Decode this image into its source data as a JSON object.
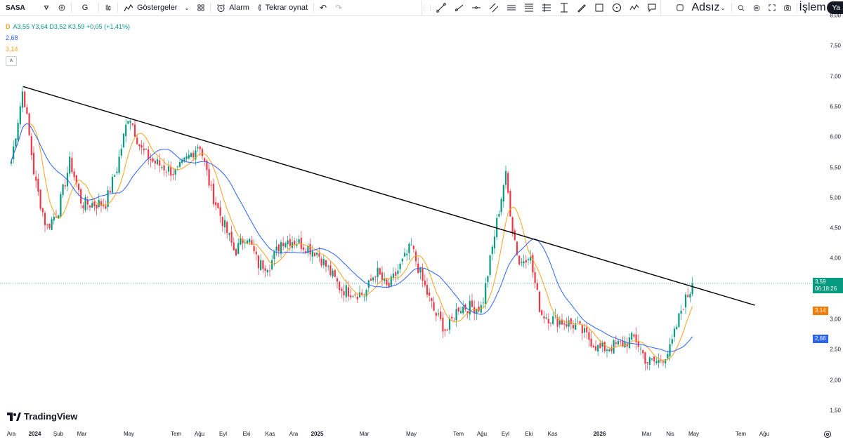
{
  "toolbar": {
    "symbol": "SASA",
    "interval": "G",
    "indicators_label": "Göstergeler",
    "alert_label": "Alarm",
    "replay_label": "Tekrar oynat",
    "layout_name": "Adsız",
    "trade_label": "İşlem",
    "publish_label": "Ya"
  },
  "legend": {
    "flag": "D",
    "ohlc": "A3,55  Y3,64  D3,52  K3,59  +0,05 (+1,41%)",
    "ma1_value": "2,68",
    "ma2_value": "3,14",
    "ma1_color": "#2962ff",
    "ma2_color": "#f7a21b",
    "collapse_icon": "chevron-up-icon"
  },
  "branding": {
    "logo_text": "TradingView"
  },
  "price_tags": {
    "last_price": "3,59",
    "countdown": "06:18:26",
    "ma2_tag": "3,14",
    "ma1_tag": "2,68",
    "last_color": "#089981",
    "ma2_color": "#f57c00",
    "ma1_color": "#2962ff"
  },
  "colors": {
    "up": "#089981",
    "down": "#f23645",
    "trendline": "#000000"
  },
  "chart_data": {
    "type": "candlestick",
    "symbol": "SASA",
    "interval": "1D",
    "y_ticks": [
      "8,00",
      "7,50",
      "7,00",
      "6,50",
      "6,00",
      "5,50",
      "5,00",
      "4,50",
      "4,00",
      "3,50",
      "3,00",
      "2,50",
      "2,00",
      "1,50"
    ],
    "y_tick_values": [
      8.0,
      7.5,
      7.0,
      6.5,
      6.0,
      5.5,
      5.0,
      4.5,
      4.0,
      3.5,
      3.0,
      2.5,
      2.0,
      1.5
    ],
    "ylim": [
      1.5,
      8.0
    ],
    "x_ticks": [
      {
        "label": "Ara",
        "month": "2023-12",
        "bold": false
      },
      {
        "label": "2024",
        "month": "2024-01",
        "bold": true
      },
      {
        "label": "Şub",
        "month": "2024-02",
        "bold": false
      },
      {
        "label": "Mar",
        "month": "2024-03",
        "bold": false
      },
      {
        "label": "May",
        "month": "2024-05",
        "bold": false
      },
      {
        "label": "Tem",
        "month": "2024-07",
        "bold": false
      },
      {
        "label": "Ağu",
        "month": "2024-08",
        "bold": false
      },
      {
        "label": "Eyl",
        "month": "2024-09",
        "bold": false
      },
      {
        "label": "Eki",
        "month": "2024-10",
        "bold": false
      },
      {
        "label": "Kas",
        "month": "2024-11",
        "bold": false
      },
      {
        "label": "Ara",
        "month": "2024-12",
        "bold": false
      },
      {
        "label": "2025",
        "month": "2025-01",
        "bold": true
      },
      {
        "label": "Mar",
        "month": "2025-03",
        "bold": false
      },
      {
        "label": "May",
        "month": "2025-05",
        "bold": false
      },
      {
        "label": "Tem",
        "month": "2025-07",
        "bold": false
      },
      {
        "label": "Ağu",
        "month": "2025-08",
        "bold": false
      },
      {
        "label": "Eyl",
        "month": "2025-09",
        "bold": false
      },
      {
        "label": "Eki",
        "month": "2025-10",
        "bold": false
      },
      {
        "label": "Kas",
        "month": "2025-11",
        "bold": false
      },
      {
        "label": "2026",
        "month": "2026-01",
        "bold": true
      },
      {
        "label": "Mar",
        "month": "2026-03",
        "bold": false
      },
      {
        "label": "Nis",
        "month": "2026-04",
        "bold": false
      },
      {
        "label": "May",
        "month": "2026-05",
        "bold": false
      },
      {
        "label": "Tem",
        "month": "2026-07",
        "bold": false
      },
      {
        "label": "Ağu",
        "month": "2026-08",
        "bold": false
      }
    ],
    "close_path": [
      {
        "month": "2023-12",
        "close": 5.6
      },
      {
        "month": "2023-12.5",
        "close": 6.8
      },
      {
        "month": "2024-01",
        "close": 5.3
      },
      {
        "month": "2024-01.5",
        "close": 4.5
      },
      {
        "month": "2024-02",
        "close": 4.8
      },
      {
        "month": "2024-02.5",
        "close": 5.6
      },
      {
        "month": "2024-03",
        "close": 4.9
      },
      {
        "month": "2024-04",
        "close": 4.9
      },
      {
        "month": "2024-04.5",
        "close": 5.5
      },
      {
        "month": "2024-05",
        "close": 6.4
      },
      {
        "month": "2024-05.5",
        "close": 5.8
      },
      {
        "month": "2024-06",
        "close": 5.6
      },
      {
        "month": "2024-07",
        "close": 5.4
      },
      {
        "month": "2024-08",
        "close": 5.9
      },
      {
        "month": "2024-08.5",
        "close": 5.1
      },
      {
        "month": "2024-09",
        "close": 4.6
      },
      {
        "month": "2024-09.5",
        "close": 4.1
      },
      {
        "month": "2024-10",
        "close": 4.4
      },
      {
        "month": "2024-10.5",
        "close": 3.9
      },
      {
        "month": "2024-11",
        "close": 3.9
      },
      {
        "month": "2024-11.5",
        "close": 4.3
      },
      {
        "month": "2024-12",
        "close": 4.3
      },
      {
        "month": "2025-01",
        "close": 4.1
      },
      {
        "month": "2025-02",
        "close": 3.5
      },
      {
        "month": "2025-03",
        "close": 3.4
      },
      {
        "month": "2025-03.5",
        "close": 3.8
      },
      {
        "month": "2025-04",
        "close": 3.5
      },
      {
        "month": "2025-05",
        "close": 4.2
      },
      {
        "month": "2025-05.5",
        "close": 3.6
      },
      {
        "month": "2025-06",
        "close": 3.1
      },
      {
        "month": "2025-06.5",
        "close": 2.8
      },
      {
        "month": "2025-07",
        "close": 3.2
      },
      {
        "month": "2025-08",
        "close": 3.2
      },
      {
        "month": "2025-08.5",
        "close": 4.3
      },
      {
        "month": "2025-09",
        "close": 5.4
      },
      {
        "month": "2025-09.3",
        "close": 4.5
      },
      {
        "month": "2025-09.6",
        "close": 3.9
      },
      {
        "month": "2025-10",
        "close": 4.1
      },
      {
        "month": "2025-10.5",
        "close": 3.1
      },
      {
        "month": "2025-11",
        "close": 3.0
      },
      {
        "month": "2025-12",
        "close": 2.9
      },
      {
        "month": "2026-01",
        "close": 2.5
      },
      {
        "month": "2026-02",
        "close": 2.6
      },
      {
        "month": "2026-02.5",
        "close": 2.7
      },
      {
        "month": "2026-03",
        "close": 2.3
      },
      {
        "month": "2026-03.5",
        "close": 2.3
      },
      {
        "month": "2026-04",
        "close": 2.5
      },
      {
        "month": "2026-04.5",
        "close": 3.2
      },
      {
        "month": "2026-05",
        "close": 3.59
      }
    ],
    "trendline": {
      "from": {
        "month": "2023-12.5",
        "price": 6.83
      },
      "to": {
        "month": "2026-07.6",
        "price": 3.23
      }
    },
    "last_price": 3.59
  }
}
